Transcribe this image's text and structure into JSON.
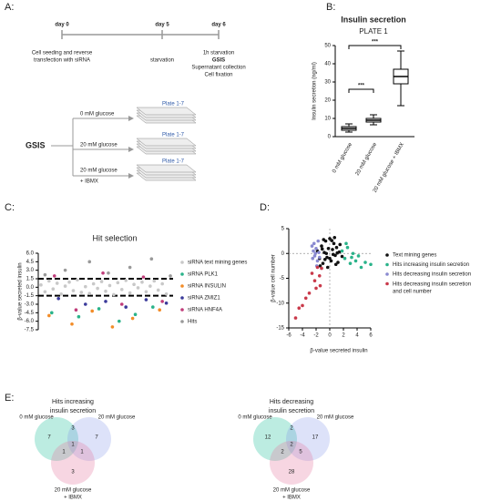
{
  "panel_labels": [
    "A:",
    "B:",
    "C:",
    "D:",
    "E:"
  ],
  "timeline": {
    "days": [
      "day 0",
      "day 5",
      "day 6"
    ],
    "notes": [
      [
        "Cell seeding and reverse",
        "transfection with siRNA"
      ],
      [
        "starvation"
      ],
      [
        "1h starvation",
        "GSIS",
        "Supernatant collection",
        "Cell fixation"
      ]
    ]
  },
  "gsis": {
    "label": "GSIS",
    "conditions": [
      [
        "0 mM glucose"
      ],
      [
        "20 mM glucose"
      ],
      [
        "20 mM glucose",
        "+ IBMX"
      ]
    ],
    "plates": [
      "Plate 1-7",
      "Plate 1-7",
      "Plate 1-7"
    ]
  },
  "chart_data": [
    {
      "type": "box",
      "title": "Insulin secretion",
      "subtitle": "PLATE 1",
      "ylabel": "Insulin secretion (ng/ml)",
      "categories": [
        "0 mM glucose",
        "20 mM glucose",
        "20 mM glucose + IBMX"
      ],
      "stats": [
        {
          "min": 2.5,
          "q1": 3.5,
          "median": 4.5,
          "q3": 5.5,
          "max": 7
        },
        {
          "min": 6.5,
          "q1": 8,
          "median": 9,
          "q3": 10,
          "max": 12
        },
        {
          "min": 17,
          "q1": 29,
          "median": 33,
          "q3": 37,
          "max": 47
        }
      ],
      "color": "#000000",
      "ylim": [
        0,
        50
      ],
      "yticks": [
        0,
        10,
        20,
        30,
        40,
        50
      ],
      "annotations": [
        "***",
        "***"
      ]
    },
    {
      "type": "scatter",
      "title": "Hit selection",
      "ylabel": "β-value secreted insulin",
      "xlim": [
        0,
        100
      ],
      "ylim": [
        -7.5,
        6
      ],
      "yticks": [
        {
          "value": 6,
          "label": "6.0"
        },
        4.5,
        {
          "value": 3,
          "label": "3.0"
        },
        1.5,
        {
          "value": 0,
          "label": "0.0"
        },
        -1.5,
        {
          "value": -3,
          "label": "-3.0"
        },
        -4.5,
        {
          "value": -6,
          "label": "-6.0"
        },
        -7.5
      ],
      "hlines": [
        1.5,
        -1.5
      ],
      "series": [
        {
          "name": "siRNA text mining genes",
          "color": "#c8c8c8",
          "x": [
            2,
            5,
            8,
            11,
            14,
            17,
            20,
            23,
            26,
            29,
            32,
            35,
            38,
            41,
            44,
            47,
            50,
            53,
            56,
            59,
            62,
            65,
            68,
            71,
            74,
            77,
            80,
            83,
            86,
            89,
            92,
            95
          ],
          "values": [
            0.4,
            -0.8,
            1.1,
            -0.3,
            0.7,
            -1.2,
            0.2,
            0.9,
            -0.6,
            1.3,
            -0.9,
            0.1,
            -1.1,
            0.6,
            -0.2,
            1,
            -0.7,
            0.3,
            -1.3,
            0.8,
            -0.4,
            1.2,
            -1,
            0.5,
            -0.1,
            0.9,
            -0.8,
            0.2,
            1.1,
            -0.5,
            0.6,
            -1.2
          ]
        },
        {
          "name": "siRNA PLK1",
          "color": "#2ab38a",
          "x": [
            10,
            30,
            45,
            60,
            72,
            85
          ],
          "values": [
            -4.5,
            -5.2,
            -3.8,
            -6,
            -4.8,
            -3.5
          ]
        },
        {
          "name": "siRNA INSULIN",
          "color": "#f28c28",
          "x": [
            8,
            25,
            40,
            55,
            70,
            90
          ],
          "values": [
            -5,
            -6.5,
            -4.2,
            -7,
            -5.5,
            -4
          ]
        },
        {
          "name": "siRNA ZMIZ1",
          "color": "#3a3a9a",
          "x": [
            15,
            35,
            50,
            65,
            80,
            95
          ],
          "values": [
            -2,
            -3,
            -2.5,
            -3.5,
            -2.2,
            -2.8
          ]
        },
        {
          "name": "siRNA HNF4A",
          "color": "#c03d7a",
          "x": [
            12,
            28,
            48,
            62,
            78,
            92
          ],
          "values": [
            2,
            -4,
            2.5,
            -3,
            1.8,
            -2.5
          ]
        },
        {
          "name": "Hits",
          "color": "#999999",
          "x": [
            5,
            20,
            38,
            52,
            68,
            84,
            98
          ],
          "values": [
            2.2,
            3,
            4.5,
            2.5,
            3.5,
            5,
            2
          ]
        }
      ]
    },
    {
      "type": "scatter",
      "xlabel": "β-value secreted insulin",
      "ylabel": "β-value cell number",
      "xlim": [
        -6,
        6
      ],
      "ylim": [
        -15,
        5
      ],
      "xticks": [
        -6,
        -4,
        -2,
        0,
        2,
        4,
        6
      ],
      "yticks": [
        5,
        0,
        -5,
        -10,
        -15
      ],
      "hlines": [
        0
      ],
      "vlines": [
        0
      ],
      "series": [
        {
          "name": "Text mining genes",
          "color": "#111111",
          "x": [
            -1.8,
            -1.5,
            -1.2,
            -1,
            -0.8,
            -0.6,
            -0.4,
            -0.2,
            0,
            0.2,
            0.4,
            0.6,
            0.8,
            1,
            1.2,
            1.4,
            -1.4,
            -0.9,
            -0.3,
            0.3,
            0.9,
            1.5,
            -0.5,
            0.5,
            0,
            -1.1,
            1.1,
            0.7,
            -0.7,
            1.8
          ],
          "values": [
            0.5,
            -1,
            1.5,
            -2,
            0.2,
            2.5,
            -0.8,
            1,
            3,
            -1.5,
            0.8,
            2,
            -0.4,
            1.2,
            -1.8,
            0.3,
            -2.5,
            2.8,
            -2.8,
            2.6,
            -2.2,
            1.8,
            0,
            -0.2,
            -1,
            0.9,
            0.1,
            3.2,
            -1.2,
            -0.6
          ]
        },
        {
          "name": "Hits increasing insulin secretion",
          "color": "#2ab38a",
          "x": [
            1.8,
            2.2,
            2.6,
            3,
            3.4,
            3.8,
            4.2,
            4.6,
            2.4,
            3.2,
            5.2,
            6
          ],
          "values": [
            0.5,
            -1,
            1.2,
            -2,
            0,
            -1.5,
            -0.5,
            -2.8,
            2,
            -0.8,
            -1.8,
            -2.2
          ]
        },
        {
          "name": "Hits decreasing insulin secretion",
          "color": "#8a8ad0",
          "x": [
            -2.6,
            -2.4,
            -2.2,
            -2,
            -1.8,
            -1.6,
            -2.3,
            -1.9,
            -2.5,
            -1.7,
            -2.1,
            -1.5
          ],
          "values": [
            1.5,
            0.5,
            -0.5,
            1,
            -1.5,
            0.2,
            2,
            -2.5,
            -1,
            2.5,
            0,
            -0.8
          ]
        },
        {
          "name": "Hits decreasing insulin secretion and cell number",
          "color": "#c9394a",
          "x": [
            -1.2,
            -1.5,
            -1.8,
            -2.2,
            -2.6,
            -1.4,
            -2,
            -3,
            -3.5,
            -4,
            -4.5,
            -5
          ],
          "values": [
            -3,
            -4.5,
            -2.8,
            -5.5,
            -4,
            -6.5,
            -7,
            -8,
            -9,
            -10.5,
            -11,
            -13
          ]
        }
      ]
    }
  ],
  "venns": [
    {
      "title": [
        "Hits increasing",
        "insulin secretion"
      ],
      "sets": [
        [
          "0 mM glucose"
        ],
        [
          "20 mM glucose"
        ],
        [
          "20 mM glucose",
          "+ IBMX"
        ]
      ],
      "counts": [
        7,
        3,
        7,
        1,
        1,
        1,
        3
      ]
    },
    {
      "title": [
        "Hits decreasing",
        "insulin secretion"
      ],
      "sets": [
        [
          "0 mM glucose"
        ],
        [
          "20 mM glucose"
        ],
        [
          "20 mM glucose",
          "+ IBMX"
        ]
      ],
      "counts": [
        12,
        2,
        17,
        2,
        2,
        5,
        28
      ]
    }
  ]
}
